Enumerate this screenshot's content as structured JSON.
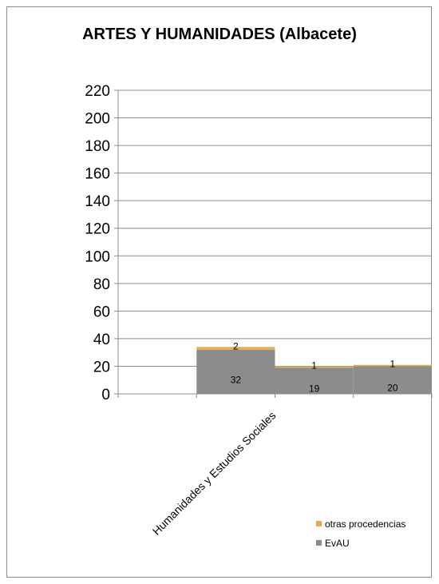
{
  "chart_data": {
    "type": "bar",
    "stacked": true,
    "title": "ARTES Y HUMANIDADES (Albacete)",
    "categories": [
      "",
      "Humanidades y Estudios Sociales",
      "",
      ""
    ],
    "series": [
      {
        "name": "EvAU",
        "color": "#8c8c8c",
        "values": [
          null,
          32,
          19,
          20
        ]
      },
      {
        "name": "otras procedencias",
        "color": "#e2ad4f",
        "values": [
          null,
          2,
          1,
          1
        ]
      }
    ],
    "ylim": [
      0,
      220
    ],
    "yticks": [
      0,
      20,
      40,
      60,
      80,
      100,
      120,
      140,
      160,
      180,
      200,
      220
    ],
    "legend_position": "bottom-right",
    "grid": true
  }
}
